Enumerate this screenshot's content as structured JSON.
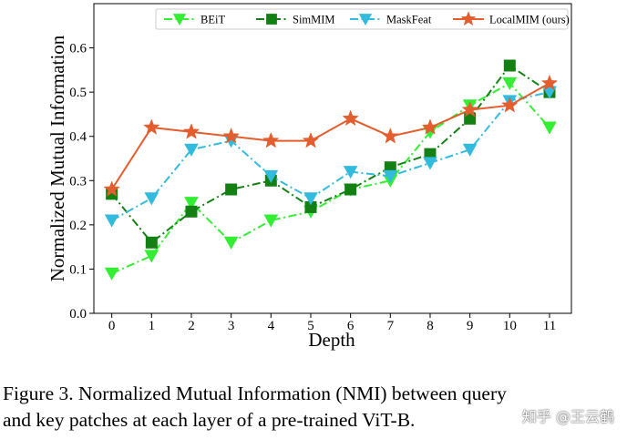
{
  "chart_data": {
    "type": "line",
    "title": "",
    "xlabel": "Depth",
    "ylabel": "Normalized Mutual Information",
    "x": [
      0,
      1,
      2,
      3,
      4,
      5,
      6,
      7,
      8,
      9,
      10,
      11
    ],
    "xticks": [
      "0",
      "1",
      "2",
      "3",
      "4",
      "5",
      "6",
      "7",
      "8",
      "9",
      "10",
      "11"
    ],
    "yticks": [
      "0.0",
      "0.1",
      "0.2",
      "0.3",
      "0.4",
      "0.5",
      "0.6"
    ],
    "ylim": [
      0.0,
      0.7
    ],
    "xlim": [
      -0.45,
      11.55
    ],
    "grid": false,
    "legend_position": "top",
    "series": [
      {
        "name": "BEiT",
        "color": "#33ee33",
        "marker": "triangle-down",
        "linestyle": "dashdot",
        "values": [
          0.09,
          0.13,
          0.25,
          0.16,
          0.21,
          0.23,
          0.28,
          0.3,
          0.41,
          0.47,
          0.52,
          0.42
        ]
      },
      {
        "name": "SimMIM",
        "color": "#138013",
        "marker": "square",
        "linestyle": "dashdot",
        "values": [
          0.27,
          0.16,
          0.23,
          0.28,
          0.3,
          0.24,
          0.28,
          0.33,
          0.36,
          0.44,
          0.56,
          0.5
        ]
      },
      {
        "name": "MaskFeat",
        "color": "#33bbdd",
        "marker": "triangle-down",
        "linestyle": "dashdot",
        "values": [
          0.21,
          0.26,
          0.37,
          0.39,
          0.31,
          0.26,
          0.32,
          0.31,
          0.34,
          0.37,
          0.48,
          0.5
        ]
      },
      {
        "name": "LocalMIM (ours)",
        "color": "#e35d2e",
        "marker": "star",
        "linestyle": "solid",
        "values": [
          0.28,
          0.42,
          0.41,
          0.4,
          0.39,
          0.39,
          0.44,
          0.4,
          0.42,
          0.46,
          0.47,
          0.52
        ]
      }
    ]
  },
  "caption": {
    "line1": "Figure 3. Normalized Mutual Information (NMI) between query",
    "line2": "and key patches at each layer of a pre-trained ViT-B."
  },
  "watermark": "知乎 @王云鹤"
}
